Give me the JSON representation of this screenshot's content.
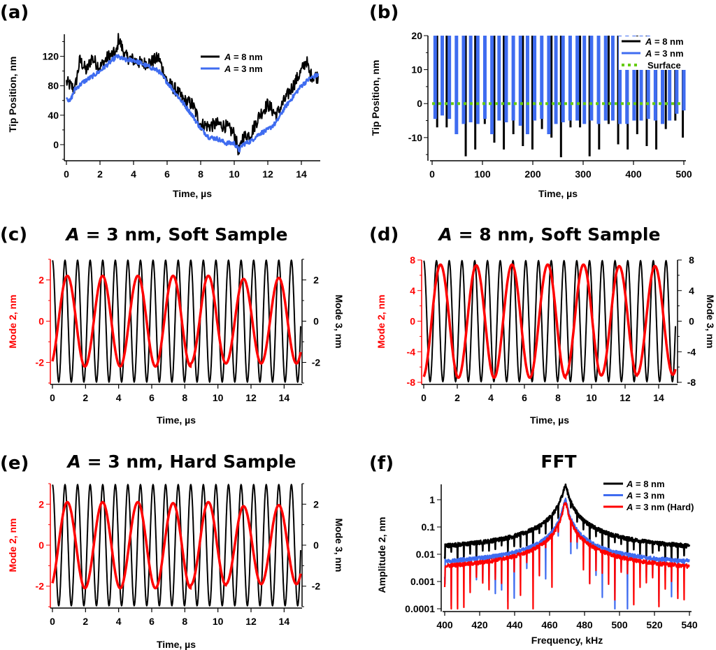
{
  "figure": {
    "colors": {
      "black": "#000000",
      "blue": "#3f6cf0",
      "red": "#ff0000",
      "green": "#66cc11"
    }
  },
  "chart_data": [
    {
      "id": "a",
      "panel_label": "(a)",
      "type": "line",
      "title": "",
      "xlabel": "Time, µs",
      "ylabel": "Tip Position, nm",
      "xlim": [
        0,
        15
      ],
      "ylim": [
        -20,
        150
      ],
      "xticks": [
        0,
        2,
        4,
        6,
        8,
        10,
        12,
        14
      ],
      "yticks": [
        0,
        40,
        80,
        120
      ],
      "legend_position": "top-right",
      "series": [
        {
          "name": "A = 8 nm",
          "name_italic": "A",
          "name_rest": " = 8 nm",
          "color": "#000000",
          "x": [
            0,
            0.5,
            0.8,
            1.2,
            1.5,
            2,
            2.5,
            3,
            3.1,
            3.5,
            4,
            4.5,
            5,
            5.5,
            6,
            6.5,
            7,
            7.5,
            8,
            8.5,
            9,
            9.5,
            10,
            10.3,
            10.5,
            11,
            11.5,
            12,
            12.5,
            13,
            13.5,
            14,
            14.3,
            14.5,
            15
          ],
          "y": [
            85,
            75,
            115,
            100,
            118,
            105,
            120,
            125,
            145,
            120,
            115,
            110,
            112,
            118,
            85,
            75,
            60,
            55,
            28,
            25,
            28,
            25,
            15,
            -12,
            10,
            15,
            40,
            55,
            40,
            60,
            80,
            100,
            115,
            95,
            92
          ]
        },
        {
          "name": "A = 3 nm",
          "name_italic": "A",
          "name_rest": " = 3 nm",
          "color": "#3f6cf0",
          "x": [
            0,
            0.2,
            0.5,
            1,
            1.5,
            2,
            2.5,
            3,
            3.5,
            4,
            4.5,
            5,
            5.5,
            6,
            6.5,
            7,
            7.5,
            8,
            8.5,
            9,
            9.5,
            10,
            10.3,
            10.5,
            11,
            11.5,
            12,
            12.5,
            13,
            13.5,
            14,
            14.5,
            15
          ],
          "y": [
            65,
            58,
            75,
            85,
            92,
            100,
            110,
            120,
            115,
            115,
            110,
            105,
            100,
            85,
            70,
            55,
            40,
            22,
            10,
            8,
            2,
            2,
            -8,
            0,
            5,
            15,
            20,
            30,
            50,
            65,
            80,
            90,
            95
          ]
        }
      ]
    },
    {
      "id": "b",
      "panel_label": "(b)",
      "type": "line",
      "title": "",
      "xlabel": "Time, µs",
      "ylabel": "Tip Position, nm",
      "xlim": [
        0,
        500
      ],
      "ylim": [
        -16,
        20
      ],
      "xticks": [
        0,
        100,
        200,
        300,
        400,
        500
      ],
      "yticks": [
        -10,
        0,
        10,
        20
      ],
      "legend_position": "top-right",
      "series": [
        {
          "name": "A = 8 nm",
          "name_italic": "A",
          "name_rest": " = 8 nm",
          "color": "#000000",
          "style": "spikes",
          "minima": [
            -7,
            -7,
            -4,
            -15.5,
            -13.5,
            -6,
            -11.5,
            -13.5,
            -9,
            -12.5,
            -13.5,
            -7.5,
            -10,
            -15.8,
            -7,
            -7,
            -15.5,
            -13.5,
            -6,
            -12,
            -13.5,
            -9,
            -12.5,
            -13.5,
            -7.5,
            -5,
            -10
          ]
        },
        {
          "name": "A = 3 nm",
          "name_italic": "A",
          "name_rest": " = 3 nm",
          "color": "#3f6cf0",
          "style": "spikes",
          "minima": [
            -4.5,
            -3.5,
            -4.5,
            -9,
            -6,
            -5.5,
            -6,
            -4.5,
            -9,
            -5,
            -5.5,
            -5,
            -6.5,
            -9,
            -5,
            -4.5,
            -9,
            -6,
            -5.5,
            -5,
            -5,
            -6,
            -5,
            -6,
            -5,
            -5,
            -6,
            -6,
            -5,
            -5,
            -4.5,
            -5,
            -6,
            -5,
            -3,
            -2
          ]
        },
        {
          "name": "Surface",
          "name_italic": "",
          "name_rest": "Surface",
          "color": "#66cc11",
          "style": "dotted",
          "x": [
            0,
            500
          ],
          "y": [
            0,
            0
          ]
        }
      ]
    },
    {
      "id": "c",
      "panel_label": "(c)",
      "type": "line",
      "title": "A = 3 nm, Soft Sample",
      "title_italic": "A",
      "title_rest": " = 3 nm, Soft Sample",
      "xlabel": "Time, µs",
      "ylabel_left": "Mode 2, nm",
      "ylabel_right": "Mode 3, nm",
      "xlim": [
        0,
        15
      ],
      "ylim_left": [
        -3,
        3
      ],
      "ylim_right": [
        -3,
        3
      ],
      "xticks": [
        0,
        2,
        4,
        6,
        8,
        10,
        12,
        14
      ],
      "yticks_left": [
        -2,
        0,
        2
      ],
      "yticks_right": [
        -2,
        0,
        2
      ],
      "series": [
        {
          "name": "Mode 2",
          "axis": "left",
          "color": "#ff0000",
          "amplitude": 2.2,
          "period_us": 2.13,
          "peak_times_us": [
            0.9,
            3.0,
            5.1,
            7.3,
            9.4,
            11.5,
            13.6
          ],
          "peak_values": [
            2.2,
            2.2,
            2.2,
            2.2,
            2.2,
            2.05,
            2.1
          ],
          "trough_values": [
            -2.2,
            -2.2,
            -2.2,
            -2.2,
            -2.05,
            -2.05,
            -2.05
          ],
          "start_value": -1.8
        },
        {
          "name": "Mode 3",
          "axis": "right",
          "color": "#000000",
          "amplitude": 2.95,
          "period_us": 0.76,
          "start_value": 2.95
        }
      ]
    },
    {
      "id": "d",
      "panel_label": "(d)",
      "type": "line",
      "title": "A = 8 nm, Soft Sample",
      "title_italic": "A",
      "title_rest": " = 8 nm, Soft Sample",
      "xlabel": "Time, µs",
      "ylabel_left": "Mode 2, nm",
      "ylabel_right": "Mode 3, nm",
      "xlim": [
        0,
        15
      ],
      "ylim_left": [
        -8,
        8
      ],
      "ylim_right": [
        -8,
        8
      ],
      "xticks": [
        0,
        2,
        4,
        6,
        8,
        10,
        12,
        14
      ],
      "yticks_left": [
        -8,
        -4,
        0,
        4,
        8
      ],
      "yticks_right": [
        -8,
        -4,
        0,
        4,
        8
      ],
      "series": [
        {
          "name": "Mode 2",
          "axis": "left",
          "color": "#ff0000",
          "amplitude": 7.4,
          "period_us": 2.13,
          "peak_times_us": [
            1.0,
            3.1,
            5.3,
            7.4,
            9.5,
            11.6,
            13.8
          ],
          "peak_values": [
            7.4,
            7.3,
            7.4,
            7.4,
            7.4,
            7.2,
            7.2
          ],
          "trough_values": [
            -7.4,
            -7.4,
            -7.4,
            -7.4,
            -7.1,
            -7.1,
            -7.0
          ],
          "start_value": -7.1
        },
        {
          "name": "Mode 3",
          "axis": "right",
          "color": "#000000",
          "amplitude": 7.9,
          "period_us": 0.76,
          "start_value": 7.9
        }
      ]
    },
    {
      "id": "e",
      "panel_label": "(e)",
      "type": "line",
      "title": "A = 3 nm, Hard Sample",
      "title_italic": "A",
      "title_rest": " = 3 nm, Hard Sample",
      "xlabel": "Time, µs",
      "ylabel_left": "Mode 2, nm",
      "ylabel_right": "Mode 3, nm",
      "xlim": [
        0,
        15
      ],
      "ylim_left": [
        -3,
        3
      ],
      "ylim_right": [
        -3,
        3
      ],
      "xticks": [
        0,
        2,
        4,
        6,
        8,
        10,
        12,
        14
      ],
      "yticks_left": [
        -2,
        0,
        2
      ],
      "yticks_right": [
        -2,
        0,
        2
      ],
      "series": [
        {
          "name": "Mode 2",
          "axis": "left",
          "color": "#ff0000",
          "amplitude": 2.1,
          "period_us": 2.13,
          "peak_times_us": [
            0.9,
            3.0,
            5.1,
            7.3,
            9.4,
            11.5,
            13.6
          ],
          "peak_values": [
            2.1,
            2.1,
            2.1,
            2.05,
            2.1,
            1.9,
            1.95
          ],
          "trough_values": [
            -2.1,
            -2.1,
            -2.1,
            -2.1,
            -1.95,
            -1.9,
            -1.9
          ],
          "start_value": -1.65
        },
        {
          "name": "Mode 3",
          "axis": "right",
          "color": "#000000",
          "amplitude": 2.95,
          "period_us": 0.76,
          "start_value": 2.95
        }
      ]
    },
    {
      "id": "f",
      "panel_label": "(f)",
      "type": "line",
      "title": "FFT",
      "xlabel": "Frequency, kHz",
      "ylabel": "Amplitude 2, nm",
      "yscale": "log",
      "xlim": [
        400,
        540
      ],
      "ylim": [
        0.0001,
        4
      ],
      "xticks": [
        400,
        420,
        440,
        460,
        480,
        500,
        520,
        540
      ],
      "yticks": [
        0.0001,
        0.001,
        0.01,
        0.1,
        1
      ],
      "ytick_labels": [
        "0.0001",
        "0.001",
        "0.01",
        "0.1",
        "1"
      ],
      "legend_position": "top-right",
      "peak_frequency_khz": 469,
      "series": [
        {
          "name": "A = 8 nm",
          "name_italic": "A",
          "name_rest": " = 8 nm",
          "color": "#000000",
          "peak": 3.2,
          "floor_400": 0.011,
          "floor_540": 0.011,
          "dip_min": 0.0008
        },
        {
          "name": "A = 3 nm",
          "name_italic": "A",
          "name_rest": " = 3 nm",
          "color": "#3f6cf0",
          "peak": 1.0,
          "floor_400": 0.0035,
          "floor_540": 0.0035,
          "dip_min": 0.0001
        },
        {
          "name": "A = 3 nm (Hard)",
          "name_italic": "A",
          "name_rest": " = 3 nm (Hard)",
          "color": "#ff0000",
          "peak": 0.8,
          "floor_400": 0.002,
          "floor_540": 0.002,
          "dip_min": 0.0001
        }
      ]
    }
  ]
}
